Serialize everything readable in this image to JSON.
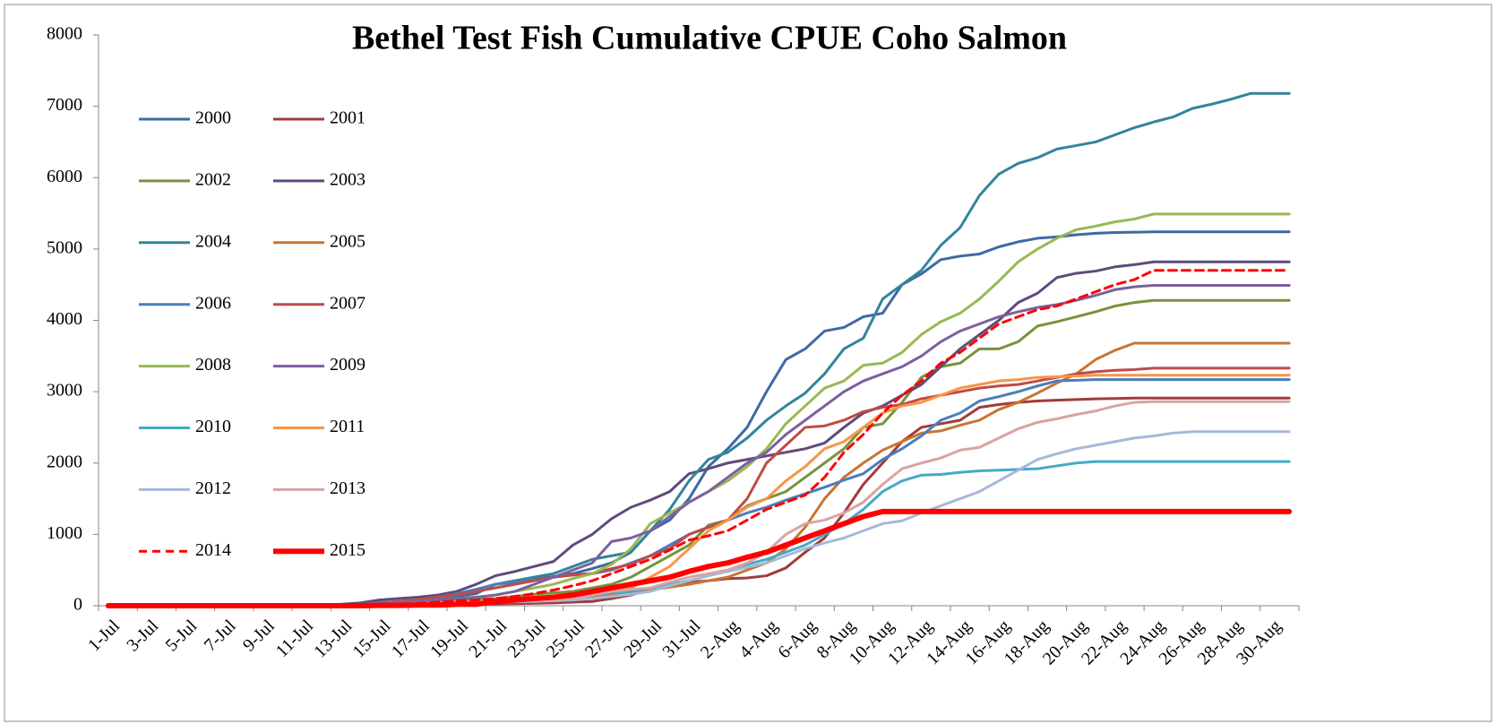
{
  "chart_data": {
    "type": "line",
    "title": "Bethel Test Fish Cumulative CPUE Coho Salmon",
    "categories": [
      "1-Jul",
      null,
      "3-Jul",
      null,
      "5-Jul",
      null,
      "7-Jul",
      null,
      "9-Jul",
      null,
      "11-Jul",
      null,
      "13-Jul",
      null,
      "15-Jul",
      null,
      "17-Jul",
      null,
      "19-Jul",
      null,
      "21-Jul",
      null,
      "23-Jul",
      null,
      "25-Jul",
      null,
      "27-Jul",
      null,
      "29-Jul",
      null,
      "31-Jul",
      null,
      "2-Aug",
      null,
      "4-Aug",
      null,
      "6-Aug",
      null,
      "8-Aug",
      null,
      "10-Aug",
      null,
      "12-Aug",
      null,
      "14-Aug",
      null,
      "16-Aug",
      null,
      "18-Aug",
      null,
      "20-Aug",
      null,
      "22-Aug",
      null,
      "24-Aug",
      null,
      "26-Aug",
      null,
      "28-Aug",
      null,
      "30-Aug",
      null
    ],
    "ylim": [
      0,
      8000
    ],
    "yticks": [
      0,
      1000,
      2000,
      3000,
      4000,
      5000,
      6000,
      7000,
      8000
    ],
    "grid": false,
    "legend": "upper left",
    "series": [
      {
        "name": "2000",
        "color": "#3d6aa4",
        "values": [
          0,
          0,
          0,
          0,
          0,
          0,
          0,
          0,
          0,
          0,
          5,
          10,
          15,
          20,
          40,
          60,
          80,
          100,
          130,
          170,
          300,
          330,
          370,
          410,
          450,
          520,
          600,
          750,
          1050,
          1200,
          1500,
          1950,
          2200,
          2500,
          3000,
          3450,
          3600,
          3850,
          3900,
          4050,
          4100,
          4500,
          4650,
          4850,
          4900,
          4930,
          5030,
          5100,
          5150,
          5170,
          5200,
          5220,
          5230,
          5235,
          5240,
          5240,
          5240,
          5240,
          5240,
          5240,
          5240,
          5240
        ]
      },
      {
        "name": "2001",
        "color": "#a03c3a",
        "values": [
          0,
          0,
          0,
          0,
          0,
          0,
          0,
          0,
          0,
          0,
          0,
          0,
          0,
          0,
          0,
          0,
          5,
          10,
          15,
          20,
          25,
          30,
          35,
          40,
          50,
          60,
          100,
          150,
          220,
          270,
          330,
          350,
          380,
          390,
          420,
          530,
          750,
          950,
          1300,
          1700,
          2000,
          2300,
          2500,
          2550,
          2600,
          2780,
          2820,
          2850,
          2870,
          2880,
          2890,
          2900,
          2905,
          2910,
          2910,
          2910,
          2910,
          2910,
          2910,
          2910,
          2910,
          2910
        ]
      },
      {
        "name": "2002",
        "color": "#77933c",
        "values": [
          0,
          0,
          0,
          0,
          0,
          0,
          0,
          0,
          0,
          0,
          5,
          10,
          15,
          20,
          30,
          40,
          50,
          60,
          80,
          90,
          100,
          130,
          160,
          180,
          200,
          250,
          300,
          400,
          550,
          700,
          850,
          1130,
          1200,
          1400,
          1500,
          1600,
          1800,
          2000,
          2200,
          2500,
          2550,
          2850,
          3200,
          3350,
          3400,
          3600,
          3600,
          3700,
          3920,
          3980,
          4050,
          4120,
          4200,
          4250,
          4280,
          4280,
          4280,
          4280,
          4280,
          4280,
          4280,
          4280
        ]
      },
      {
        "name": "2003",
        "color": "#604a7b",
        "values": [
          0,
          0,
          0,
          0,
          0,
          0,
          0,
          0,
          0,
          0,
          5,
          10,
          20,
          40,
          80,
          100,
          120,
          150,
          200,
          300,
          420,
          480,
          550,
          620,
          850,
          1000,
          1220,
          1380,
          1480,
          1600,
          1850,
          1920,
          2000,
          2050,
          2100,
          2150,
          2200,
          2280,
          2500,
          2700,
          2800,
          2950,
          3100,
          3350,
          3600,
          3800,
          4000,
          4250,
          4380,
          4600,
          4660,
          4690,
          4750,
          4780,
          4820,
          4820,
          4820,
          4820,
          4820,
          4820,
          4820,
          4820
        ]
      },
      {
        "name": "2004",
        "color": "#31859c",
        "values": [
          0,
          0,
          0,
          0,
          0,
          0,
          0,
          0,
          0,
          0,
          5,
          10,
          15,
          20,
          30,
          50,
          70,
          100,
          150,
          200,
          300,
          350,
          400,
          450,
          550,
          650,
          700,
          750,
          1050,
          1350,
          1750,
          2050,
          2150,
          2350,
          2600,
          2800,
          2980,
          3250,
          3600,
          3750,
          4300,
          4500,
          4700,
          5050,
          5300,
          5750,
          6050,
          6200,
          6280,
          6400,
          6450,
          6500,
          6600,
          6700,
          6780,
          6850,
          6970,
          7030,
          7100,
          7180,
          7180,
          7180
        ]
      },
      {
        "name": "2005",
        "color": "#c87533",
        "values": [
          0,
          0,
          0,
          0,
          0,
          0,
          0,
          0,
          0,
          0,
          0,
          0,
          0,
          5,
          10,
          15,
          20,
          25,
          30,
          40,
          50,
          60,
          70,
          80,
          100,
          120,
          150,
          180,
          220,
          260,
          300,
          350,
          400,
          500,
          600,
          800,
          1100,
          1500,
          1800,
          2000,
          2180,
          2300,
          2420,
          2450,
          2530,
          2600,
          2750,
          2850,
          2980,
          3120,
          3250,
          3450,
          3580,
          3680,
          3680,
          3680,
          3680,
          3680,
          3680,
          3680,
          3680,
          3680
        ]
      },
      {
        "name": "2006",
        "color": "#4a7ebb",
        "values": [
          0,
          0,
          0,
          0,
          0,
          0,
          0,
          0,
          0,
          0,
          5,
          10,
          15,
          20,
          40,
          60,
          80,
          120,
          170,
          230,
          300,
          330,
          360,
          400,
          430,
          450,
          500,
          600,
          700,
          850,
          1000,
          1100,
          1200,
          1300,
          1380,
          1480,
          1570,
          1660,
          1760,
          1850,
          2050,
          2200,
          2380,
          2600,
          2700,
          2870,
          2930,
          3000,
          3080,
          3150,
          3160,
          3170,
          3170,
          3170,
          3170,
          3170,
          3170,
          3170,
          3170,
          3170,
          3170,
          3170
        ]
      },
      {
        "name": "2007",
        "color": "#be4b48",
        "values": [
          0,
          0,
          0,
          0,
          0,
          0,
          0,
          0,
          0,
          0,
          5,
          10,
          15,
          20,
          40,
          60,
          80,
          120,
          160,
          200,
          250,
          300,
          350,
          400,
          430,
          450,
          520,
          580,
          700,
          800,
          1000,
          1100,
          1200,
          1500,
          2000,
          2250,
          2500,
          2520,
          2600,
          2720,
          2780,
          2820,
          2900,
          2950,
          3000,
          3050,
          3080,
          3100,
          3150,
          3200,
          3250,
          3280,
          3300,
          3310,
          3330,
          3330,
          3330,
          3330,
          3330,
          3330,
          3330,
          3330
        ]
      },
      {
        "name": "2008",
        "color": "#98b954",
        "values": [
          0,
          0,
          0,
          0,
          0,
          0,
          0,
          0,
          0,
          0,
          5,
          10,
          15,
          20,
          30,
          40,
          60,
          80,
          100,
          120,
          150,
          200,
          250,
          300,
          380,
          450,
          580,
          800,
          1150,
          1300,
          1450,
          1600,
          1750,
          1950,
          2200,
          2550,
          2800,
          3050,
          3150,
          3370,
          3400,
          3550,
          3800,
          3980,
          4100,
          4300,
          4550,
          4820,
          5000,
          5150,
          5270,
          5320,
          5380,
          5420,
          5490,
          5490,
          5490,
          5490,
          5490,
          5490,
          5490,
          5490
        ]
      },
      {
        "name": "2009",
        "color": "#7d5fa0",
        "values": [
          0,
          0,
          0,
          0,
          0,
          0,
          0,
          0,
          0,
          0,
          5,
          10,
          15,
          20,
          30,
          40,
          60,
          80,
          100,
          120,
          150,
          200,
          300,
          400,
          500,
          600,
          900,
          950,
          1050,
          1250,
          1450,
          1600,
          1800,
          2000,
          2150,
          2400,
          2600,
          2800,
          3000,
          3150,
          3250,
          3350,
          3500,
          3700,
          3850,
          3950,
          4050,
          4120,
          4180,
          4220,
          4280,
          4350,
          4430,
          4470,
          4490,
          4490,
          4490,
          4490,
          4490,
          4490,
          4490,
          4490
        ]
      },
      {
        "name": "2010",
        "color": "#46aac5",
        "values": [
          0,
          0,
          0,
          0,
          0,
          0,
          0,
          0,
          0,
          0,
          0,
          0,
          5,
          10,
          15,
          20,
          30,
          40,
          50,
          60,
          70,
          80,
          100,
          120,
          140,
          150,
          180,
          200,
          250,
          300,
          350,
          420,
          500,
          580,
          650,
          750,
          850,
          1000,
          1150,
          1350,
          1600,
          1750,
          1830,
          1840,
          1870,
          1890,
          1900,
          1910,
          1920,
          1960,
          2000,
          2020,
          2020,
          2020,
          2020,
          2020,
          2020,
          2020,
          2020,
          2020,
          2020,
          2020
        ]
      },
      {
        "name": "2011",
        "color": "#f79646",
        "values": [
          0,
          0,
          0,
          0,
          0,
          0,
          0,
          0,
          0,
          0,
          0,
          0,
          5,
          10,
          15,
          20,
          30,
          40,
          50,
          60,
          70,
          80,
          100,
          120,
          140,
          150,
          200,
          250,
          400,
          550,
          800,
          1050,
          1200,
          1380,
          1500,
          1750,
          1950,
          2200,
          2300,
          2500,
          2700,
          2800,
          2850,
          2950,
          3050,
          3100,
          3150,
          3170,
          3200,
          3210,
          3220,
          3230,
          3230,
          3230,
          3230,
          3230,
          3230,
          3230,
          3230,
          3230,
          3230,
          3230
        ]
      },
      {
        "name": "2012",
        "color": "#a5b9d8",
        "values": [
          0,
          0,
          0,
          0,
          0,
          0,
          0,
          0,
          0,
          0,
          0,
          0,
          0,
          5,
          10,
          15,
          20,
          25,
          30,
          40,
          50,
          55,
          60,
          70,
          80,
          100,
          130,
          160,
          200,
          280,
          350,
          420,
          480,
          540,
          600,
          700,
          800,
          880,
          950,
          1050,
          1150,
          1190,
          1300,
          1400,
          1500,
          1600,
          1750,
          1900,
          2050,
          2130,
          2200,
          2250,
          2300,
          2350,
          2380,
          2420,
          2440,
          2440,
          2440,
          2440,
          2440,
          2440
        ]
      },
      {
        "name": "2013",
        "color": "#d9a3a2",
        "values": [
          0,
          0,
          0,
          0,
          0,
          0,
          0,
          0,
          0,
          0,
          0,
          0,
          0,
          5,
          10,
          15,
          20,
          30,
          40,
          50,
          60,
          70,
          80,
          90,
          100,
          150,
          200,
          230,
          250,
          330,
          400,
          450,
          500,
          600,
          750,
          1000,
          1150,
          1200,
          1300,
          1450,
          1700,
          1920,
          2000,
          2070,
          2180,
          2220,
          2350,
          2480,
          2570,
          2620,
          2680,
          2730,
          2800,
          2850,
          2860,
          2860,
          2860,
          2860,
          2860,
          2860,
          2860,
          2860
        ]
      },
      {
        "name": "2014",
        "color": "#ff0000",
        "dashed": true,
        "values": [
          0,
          0,
          0,
          0,
          0,
          0,
          0,
          0,
          0,
          0,
          0,
          0,
          5,
          10,
          15,
          20,
          30,
          50,
          70,
          80,
          100,
          130,
          170,
          220,
          280,
          350,
          450,
          550,
          650,
          780,
          920,
          980,
          1050,
          1200,
          1350,
          1450,
          1550,
          1800,
          2150,
          2400,
          2700,
          2950,
          3150,
          3400,
          3550,
          3750,
          3950,
          4050,
          4150,
          4200,
          4300,
          4400,
          4500,
          4570,
          4700,
          4700,
          4700,
          4700,
          4700,
          4700,
          4700,
          4700
        ]
      },
      {
        "name": "2015",
        "color": "#ff0000",
        "linewidth": 6,
        "values": [
          0,
          0,
          0,
          0,
          0,
          0,
          0,
          0,
          0,
          0,
          0,
          0,
          0,
          0,
          5,
          5,
          10,
          10,
          20,
          20,
          60,
          80,
          100,
          120,
          150,
          200,
          250,
          300,
          350,
          400,
          480,
          550,
          600,
          680,
          750,
          850,
          950,
          1050,
          1150,
          1250,
          1320,
          1320,
          1320,
          1320,
          1320,
          1320,
          1320,
          1320,
          1320,
          1320,
          1320,
          1320,
          1320,
          1320,
          1320,
          1320,
          1320,
          1320,
          1320,
          1320,
          1320,
          1320
        ]
      }
    ]
  }
}
